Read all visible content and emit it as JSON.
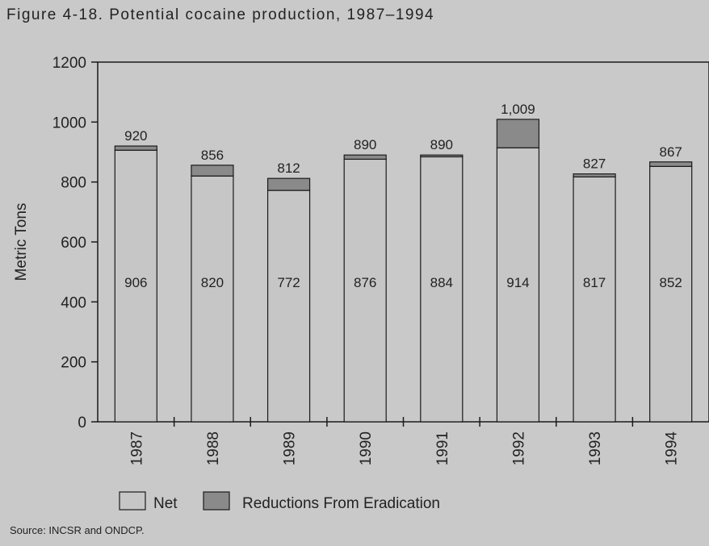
{
  "title": "Figure 4-18. Potential cocaine production, 1987–1994",
  "source": "Source: INCSR and ONDCP.",
  "colors": {
    "background": "#c9c9c9",
    "net": "#c6c6c6",
    "reductions": "#8a8a8a",
    "stroke": "#1a1a1a"
  },
  "chart_data": {
    "type": "bar",
    "stacked": true,
    "categories": [
      "1987",
      "1988",
      "1989",
      "1990",
      "1991",
      "1992",
      "1993",
      "1994"
    ],
    "series": [
      {
        "name": "Net",
        "values": [
          906,
          820,
          772,
          876,
          884,
          914,
          817,
          852
        ]
      },
      {
        "name": "Reductions From Eradication",
        "values": [
          14,
          36,
          40,
          14,
          6,
          95,
          10,
          15
        ]
      }
    ],
    "total_labels": [
      "920",
      "856",
      "812",
      "890",
      "890",
      "1,009",
      "827",
      "867"
    ],
    "net_labels": [
      "906",
      "820",
      "772",
      "876",
      "884",
      "914",
      "817",
      "852"
    ],
    "ylabel": "Metric Tons",
    "xlabel": "",
    "ylim": [
      0,
      1200
    ],
    "yticks": [
      0,
      200,
      400,
      600,
      800,
      1000,
      1200
    ],
    "grid": false,
    "legend_position": "bottom-left"
  }
}
